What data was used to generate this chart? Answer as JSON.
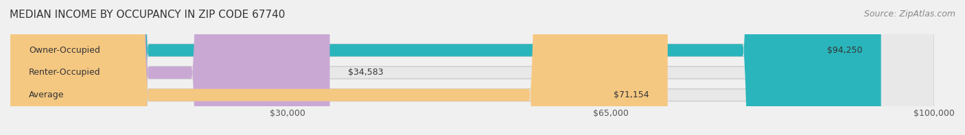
{
  "title": "MEDIAN INCOME BY OCCUPANCY IN ZIP CODE 67740",
  "source_text": "Source: ZipAtlas.com",
  "categories": [
    "Owner-Occupied",
    "Renter-Occupied",
    "Average"
  ],
  "values": [
    94250,
    34583,
    71154
  ],
  "bar_colors": [
    "#2ab5bc",
    "#c9a8d4",
    "#f5c882"
  ],
  "bar_edge_colors": [
    "#2ab5bc",
    "#c9a8d4",
    "#f5c882"
  ],
  "label_texts": [
    "$94,250",
    "$34,583",
    "$71,154"
  ],
  "x_ticks": [
    30000,
    65000,
    100000
  ],
  "x_tick_labels": [
    "$30,000",
    "$65,000",
    "$100,000"
  ],
  "xlim": [
    0,
    100000
  ],
  "background_color": "#f0f0f0",
  "bar_background_color": "#e8e8e8",
  "title_fontsize": 11,
  "source_fontsize": 9,
  "label_fontsize": 9,
  "tick_fontsize": 9,
  "category_fontsize": 9
}
